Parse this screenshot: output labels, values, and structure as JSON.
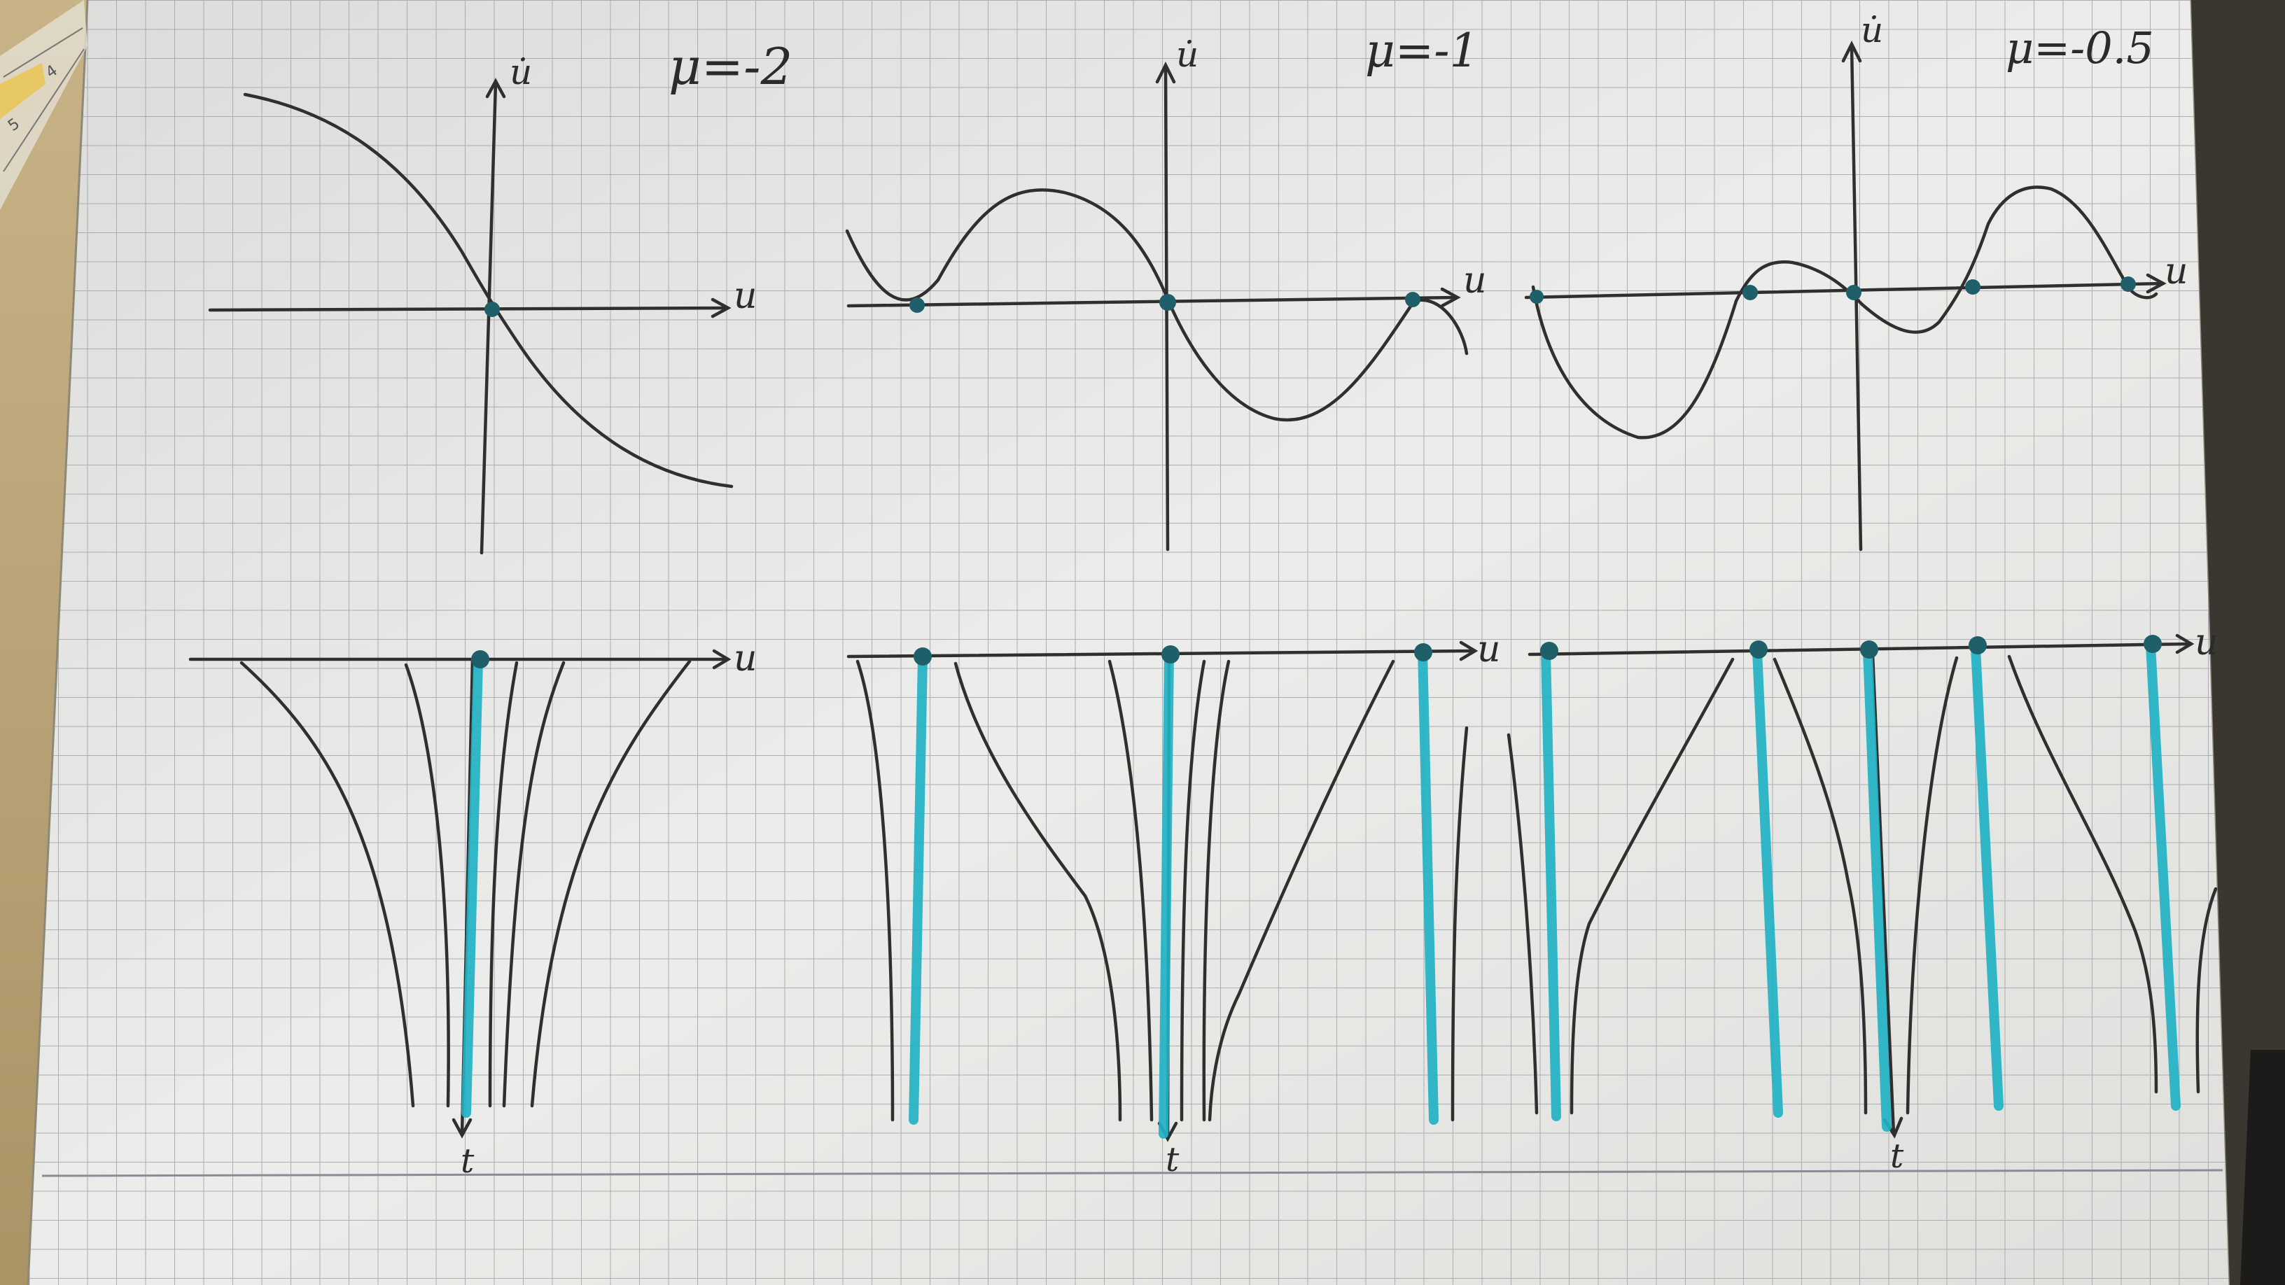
{
  "photo": {
    "subject": "graph-paper-sketch",
    "ink_color": "#2f2f2f",
    "highlight_color": "#1fb0c0",
    "paper_color": "#e9e9e7",
    "grid_color": "#9a9aa6"
  },
  "panels": [
    {
      "param_label": "μ=-2",
      "phase_axis_y": "u̇",
      "phase_axis_x": "u",
      "flow_axis_x": "u",
      "flow_axis_t": "t"
    },
    {
      "param_label": "μ=-1",
      "phase_axis_y": "u̇",
      "phase_axis_x": "u",
      "flow_axis_x": "u",
      "flow_axis_t": "t"
    },
    {
      "param_label": "μ=-0.5",
      "phase_axis_y": "u̇",
      "phase_axis_x": "u",
      "flow_axis_x": "u",
      "flow_axis_t": "t"
    }
  ],
  "ruler": {
    "ticks": [
      "5",
      "4"
    ]
  }
}
